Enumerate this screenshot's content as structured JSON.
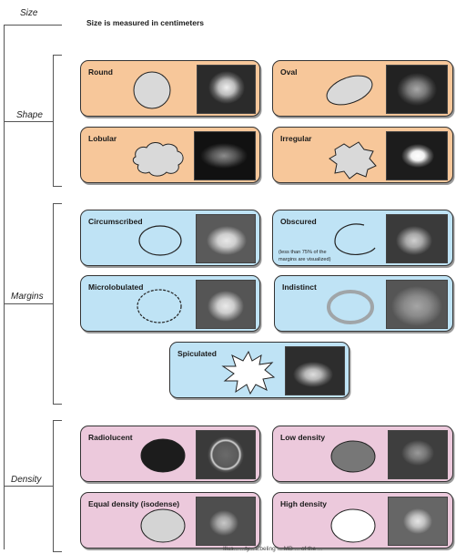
{
  "sections": {
    "size": "Size",
    "shape": "Shape",
    "margins": "Margins",
    "density": "Density"
  },
  "size_text": "Size is measured in centimeters",
  "shape": {
    "round": "Round",
    "oval": "Oval",
    "lobular": "Lobular",
    "irregular": "Irregular"
  },
  "margins": {
    "circumscribed": "Circumscribed",
    "obscured": "Obscured",
    "obscured_note_1": "(less than 75% of the",
    "obscured_note_2": "margins are visualized)",
    "microlobulated": "Microlobulated",
    "indistinct": "Indistinct",
    "spiculated": "Spiculated"
  },
  "density": {
    "radiolucent": "Radiolucent",
    "low": "Low density",
    "equal": "Equal density (isodense)",
    "high": "High density"
  },
  "credit": "Illus... ...ty... Ebeling ... MD ... of the ... ",
  "colors": {
    "shape_card": "#f7c79a",
    "margins_card": "#bfe3f5",
    "density_card": "#ecc9dc",
    "shape_fill": "#d9d9d9"
  }
}
